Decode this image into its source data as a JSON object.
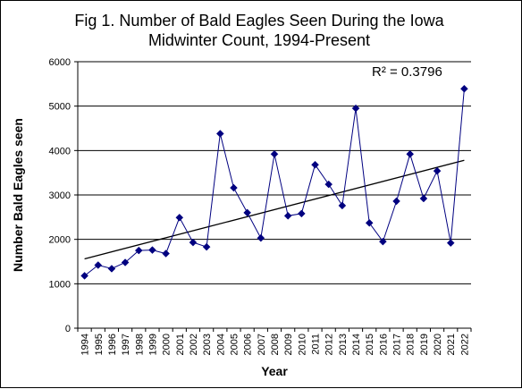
{
  "chart_data": {
    "type": "scatter",
    "title_lines": [
      "Fig 1. Number of Bald Eagles Seen During the Iowa",
      "Midwinter Count, 1994-Present"
    ],
    "xlabel": "Year",
    "ylabel": "Number Bald Eagles seen",
    "ylim": [
      0,
      6000
    ],
    "yticks": [
      0,
      1000,
      2000,
      3000,
      4000,
      5000,
      6000
    ],
    "grid": "horizontal",
    "legend": "none",
    "annotation": "R² = 0.3796",
    "series": [
      {
        "marker": "diamond",
        "connected": true,
        "color": "#000080",
        "x": [
          "1994",
          "1995",
          "1996",
          "1997",
          "1998",
          "1999",
          "2000",
          "2001",
          "2002",
          "2003",
          "2004",
          "2005",
          "2006",
          "2007",
          "2008",
          "2009",
          "2010",
          "2011",
          "2012",
          "2013",
          "2014",
          "2015",
          "2016",
          "2017",
          "2018",
          "2019",
          "2020",
          "2021",
          "2022"
        ],
        "values": [
          1180,
          1420,
          1340,
          1480,
          1750,
          1760,
          1680,
          2490,
          1930,
          1830,
          4380,
          3160,
          2600,
          2030,
          3920,
          2530,
          2580,
          3680,
          3240,
          2760,
          4950,
          2370,
          1950,
          2860,
          3920,
          2920,
          3540,
          1920,
          5390
        ]
      }
    ],
    "trendline": {
      "type": "linear",
      "start": {
        "x": "1994",
        "y": 1560
      },
      "end": {
        "x": "2022",
        "y": 3780
      },
      "color": "#000000"
    }
  }
}
